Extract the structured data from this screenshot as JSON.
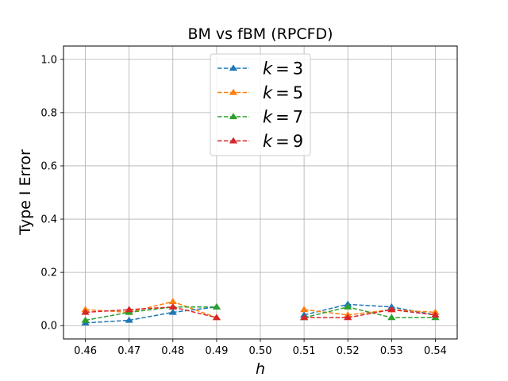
{
  "chart_data": {
    "type": "line",
    "title": "BM vs fBM (RPCFD)",
    "xlabel": "h",
    "ylabel": "Type I Error",
    "x": [
      0.46,
      0.47,
      0.48,
      0.49,
      0.51,
      0.52,
      0.53,
      0.54
    ],
    "x_tick_labels": [
      "0.46",
      "0.47",
      "0.48",
      "0.49",
      "0.50",
      "0.51",
      "0.52",
      "0.53",
      "0.54"
    ],
    "x_ticks": [
      0.46,
      0.47,
      0.48,
      0.49,
      0.5,
      0.51,
      0.52,
      0.53,
      0.54
    ],
    "y_tick_labels": [
      "0.0",
      "0.2",
      "0.4",
      "0.6",
      "0.8",
      "1.0"
    ],
    "y_ticks": [
      0.0,
      0.2,
      0.4,
      0.6,
      0.8,
      1.0
    ],
    "xlim": [
      0.455,
      0.545
    ],
    "ylim": [
      -0.05,
      1.05
    ],
    "grid": true,
    "legend_position": "top-center",
    "series": [
      {
        "name": "k = 3",
        "legend_var": "k",
        "legend_op": "=",
        "legend_val": "3",
        "color": "#1f77b4",
        "values": [
          0.01,
          0.02,
          0.05,
          0.07,
          0.04,
          0.08,
          0.07,
          0.04
        ]
      },
      {
        "name": "k = 5",
        "legend_var": "k",
        "legend_op": "=",
        "legend_val": "5",
        "color": "#ff7f0e",
        "values": [
          0.06,
          0.05,
          0.09,
          0.03,
          0.06,
          0.04,
          0.06,
          0.05
        ]
      },
      {
        "name": "k = 7",
        "legend_var": "k",
        "legend_op": "=",
        "legend_val": "7",
        "color": "#2ca02c",
        "values": [
          0.02,
          0.05,
          0.07,
          0.07,
          0.03,
          0.07,
          0.03,
          0.03
        ]
      },
      {
        "name": "k = 9",
        "legend_var": "k",
        "legend_op": "=",
        "legend_val": "9",
        "color": "#d62728",
        "values": [
          0.05,
          0.06,
          0.07,
          0.03,
          0.03,
          0.03,
          0.06,
          0.04
        ]
      }
    ]
  }
}
